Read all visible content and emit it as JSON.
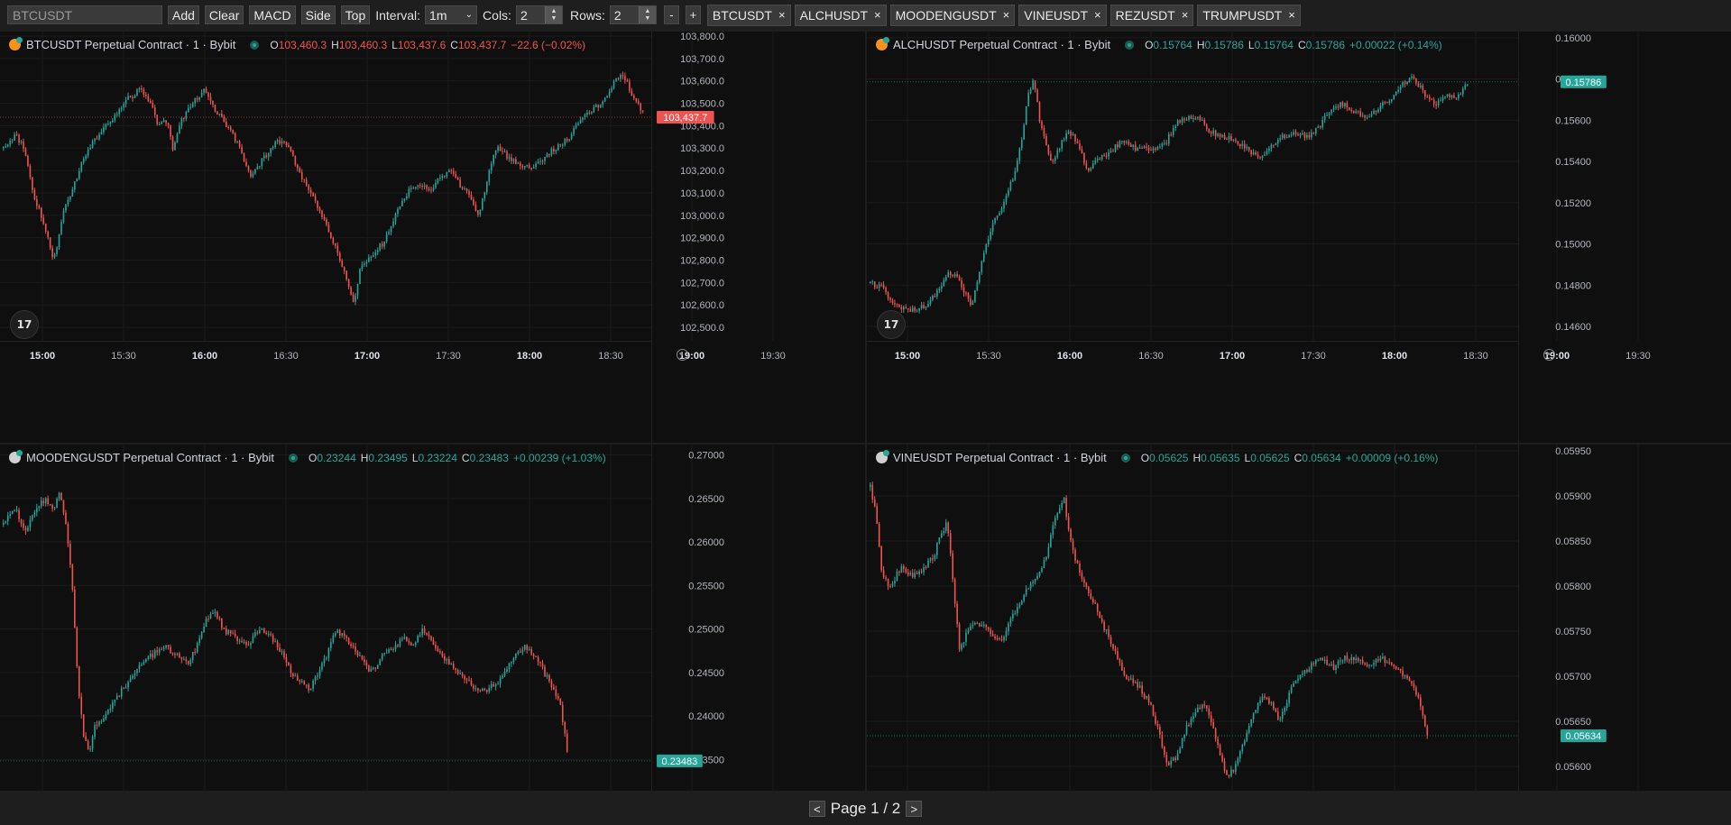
{
  "toolbar": {
    "search_value": "BTCUSDT",
    "add_label": "Add",
    "clear_label": "Clear",
    "macd_label": "MACD",
    "side_label": "Side",
    "top_label": "Top",
    "interval_label": "Interval:",
    "interval_value": "1m",
    "cols_label": "Cols:",
    "cols_value": "2",
    "rows_label": "Rows:",
    "rows_value": "2",
    "minus_label": "-",
    "plus_label": "+",
    "symbols": [
      "BTCUSDT",
      "ALCHUSDT",
      "MOODENGUSDT",
      "VINEUSDT",
      "REZUSDT",
      "TRUMPUSDT"
    ],
    "remove_glyph": "×"
  },
  "footer": {
    "prev_label": "<",
    "page_text": "Page 1 / 2",
    "next_label": ">"
  },
  "colors": {
    "up": "#26a69a",
    "down": "#ef5350",
    "background": "#0f0f0f",
    "grid": "#1c1c1c"
  },
  "chart_data": [
    {
      "type": "candlestick",
      "title": "BTCUSDT Perpetual Contract · 1 · Bybit",
      "exchange_icon": "bybit-orange",
      "ohlc": {
        "o": "103,460.3",
        "h": "103,460.3",
        "l": "103,437.6",
        "c": "103,437.7",
        "change": "−22.6 (−0.02%)",
        "direction": "down"
      },
      "last_price_label": "103,437.7",
      "last_price": 103437.7,
      "y_ticks": [
        "103,800.0",
        "103,700.0",
        "103,600.0",
        "103,500.0",
        "103,400.0",
        "103,300.0",
        "103,200.0",
        "103,100.0",
        "103,000.0",
        "102,900.0",
        "102,800.0",
        "102,700.0",
        "102,600.0",
        "102,500.0"
      ],
      "ylim": [
        102440,
        103820
      ],
      "x_ticks": [
        {
          "label": "15:00",
          "bold": true
        },
        {
          "label": "15:30",
          "bold": false
        },
        {
          "label": "16:00",
          "bold": true
        },
        {
          "label": "16:30",
          "bold": false
        },
        {
          "label": "17:00",
          "bold": true
        },
        {
          "label": "17:30",
          "bold": false
        },
        {
          "label": "18:00",
          "bold": true
        },
        {
          "label": "18:30",
          "bold": false
        },
        {
          "label": "19:00",
          "bold": true
        },
        {
          "label": "19:30",
          "bold": false
        }
      ],
      "bars": 287,
      "path": [
        [
          0,
          103300
        ],
        [
          8,
          103360
        ],
        [
          14,
          103300
        ],
        [
          20,
          103100
        ],
        [
          28,
          102950
        ],
        [
          34,
          102800
        ],
        [
          40,
          103000
        ],
        [
          48,
          103150
        ],
        [
          56,
          103280
        ],
        [
          66,
          103380
        ],
        [
          76,
          103450
        ],
        [
          84,
          103520
        ],
        [
          92,
          103560
        ],
        [
          100,
          103490
        ],
        [
          104,
          103400
        ],
        [
          110,
          103420
        ],
        [
          114,
          103300
        ],
        [
          118,
          103400
        ],
        [
          124,
          103470
        ],
        [
          130,
          103520
        ],
        [
          136,
          103560
        ],
        [
          142,
          103480
        ],
        [
          150,
          103400
        ],
        [
          158,
          103320
        ],
        [
          166,
          103180
        ],
        [
          176,
          103260
        ],
        [
          184,
          103340
        ],
        [
          192,
          103300
        ],
        [
          200,
          103180
        ],
        [
          208,
          103080
        ],
        [
          216,
          102980
        ],
        [
          224,
          102850
        ],
        [
          232,
          102700
        ],
        [
          236,
          102610
        ],
        [
          240,
          102760
        ],
        [
          248,
          102820
        ],
        [
          256,
          102880
        ],
        [
          264,
          103000
        ],
        [
          272,
          103100
        ],
        [
          280,
          103140
        ],
        [
          288,
          103120
        ],
        [
          296,
          103180
        ],
        [
          302,
          103210
        ],
        [
          308,
          103130
        ],
        [
          314,
          103080
        ],
        [
          320,
          103000
        ],
        [
          326,
          103170
        ],
        [
          332,
          103300
        ],
        [
          340,
          103260
        ],
        [
          348,
          103230
        ],
        [
          356,
          103210
        ],
        [
          364,
          103260
        ],
        [
          372,
          103300
        ],
        [
          380,
          103340
        ],
        [
          388,
          103420
        ],
        [
          396,
          103470
        ],
        [
          404,
          103500
        ],
        [
          410,
          103580
        ],
        [
          416,
          103640
        ],
        [
          422,
          103560
        ],
        [
          428,
          103480
        ],
        [
          432,
          103440
        ]
      ]
    },
    {
      "type": "candlestick",
      "title": "ALCHUSDT Perpetual Contract · 1 · Bybit",
      "exchange_icon": "bybit-orange",
      "ohlc": {
        "o": "0.15764",
        "h": "0.15786",
        "l": "0.15764",
        "c": "0.15786",
        "change": "+0.00022 (+0.14%)",
        "direction": "up"
      },
      "last_price_label": "0.15786",
      "last_price": 0.15786,
      "y_ticks": [
        "0.16000",
        "0.15800",
        "0.15600",
        "0.15400",
        "0.15200",
        "0.15000",
        "0.14800",
        "0.14600"
      ],
      "ylim": [
        0.1453,
        0.1603
      ],
      "x_ticks": [
        {
          "label": "15:00",
          "bold": true
        },
        {
          "label": "15:30",
          "bold": false
        },
        {
          "label": "16:00",
          "bold": true
        },
        {
          "label": "16:30",
          "bold": false
        },
        {
          "label": "17:00",
          "bold": true
        },
        {
          "label": "17:30",
          "bold": false
        },
        {
          "label": "18:00",
          "bold": true
        },
        {
          "label": "18:30",
          "bold": false
        },
        {
          "label": "19:00",
          "bold": true
        },
        {
          "label": "19:30",
          "bold": false
        }
      ],
      "bars": 290,
      "path": [
        [
          0,
          0.1481
        ],
        [
          8,
          0.1479
        ],
        [
          14,
          0.1472
        ],
        [
          22,
          0.1468
        ],
        [
          30,
          0.1468
        ],
        [
          38,
          0.147
        ],
        [
          46,
          0.1478
        ],
        [
          52,
          0.1486
        ],
        [
          58,
          0.1484
        ],
        [
          64,
          0.1476
        ],
        [
          68,
          0.147
        ],
        [
          72,
          0.1482
        ],
        [
          78,
          0.15
        ],
        [
          84,
          0.1512
        ],
        [
          90,
          0.152
        ],
        [
          96,
          0.1532
        ],
        [
          102,
          0.155
        ],
        [
          106,
          0.1572
        ],
        [
          110,
          0.158
        ],
        [
          114,
          0.156
        ],
        [
          118,
          0.1548
        ],
        [
          122,
          0.1538
        ],
        [
          128,
          0.1548
        ],
        [
          134,
          0.1555
        ],
        [
          140,
          0.1548
        ],
        [
          146,
          0.1536
        ],
        [
          152,
          0.154
        ],
        [
          160,
          0.1544
        ],
        [
          170,
          0.155
        ],
        [
          180,
          0.1546
        ],
        [
          190,
          0.1546
        ],
        [
          198,
          0.1548
        ],
        [
          206,
          0.1558
        ],
        [
          214,
          0.1562
        ],
        [
          222,
          0.156
        ],
        [
          230,
          0.1554
        ],
        [
          238,
          0.1552
        ],
        [
          246,
          0.155
        ],
        [
          254,
          0.1546
        ],
        [
          262,
          0.1542
        ],
        [
          270,
          0.1548
        ],
        [
          278,
          0.1552
        ],
        [
          286,
          0.1554
        ],
        [
          294,
          0.1552
        ],
        [
          302,
          0.1556
        ],
        [
          310,
          0.1566
        ],
        [
          318,
          0.1568
        ],
        [
          326,
          0.1564
        ],
        [
          334,
          0.1562
        ],
        [
          342,
          0.1566
        ],
        [
          350,
          0.157
        ],
        [
          358,
          0.1578
        ],
        [
          364,
          0.1581
        ],
        [
          370,
          0.1576
        ],
        [
          376,
          0.157
        ],
        [
          382,
          0.1568
        ],
        [
          388,
          0.1572
        ],
        [
          394,
          0.157
        ],
        [
          400,
          0.1576
        ],
        [
          404,
          0.1579
        ]
      ]
    },
    {
      "type": "candlestick",
      "title": "MOODENGUSDT Perpetual Contract · 1 · Bybit",
      "exchange_icon": "bybit-white",
      "ohlc": {
        "o": "0.23244",
        "h": "0.23495",
        "l": "0.23224",
        "c": "0.23483",
        "change": "+0.00239 (+1.03%)",
        "direction": "up"
      },
      "last_price_label": "0.23483",
      "last_price": 0.23483,
      "y_ticks": [
        "0.27000",
        "0.26500",
        "0.26000",
        "0.25500",
        "0.25000",
        "0.24500",
        "0.24000",
        "0.23500"
      ],
      "ylim": [
        0.2314,
        0.2712
      ],
      "x_ticks": [],
      "bars": 287,
      "path": [
        [
          0,
          0.262
        ],
        [
          8,
          0.264
        ],
        [
          14,
          0.261
        ],
        [
          20,
          0.263
        ],
        [
          28,
          0.265
        ],
        [
          34,
          0.264
        ],
        [
          38,
          0.266
        ],
        [
          42,
          0.262
        ],
        [
          46,
          0.256
        ],
        [
          50,
          0.244
        ],
        [
          54,
          0.238
        ],
        [
          58,
          0.236
        ],
        [
          62,
          0.239
        ],
        [
          68,
          0.24
        ],
        [
          76,
          0.242
        ],
        [
          84,
          0.244
        ],
        [
          92,
          0.246
        ],
        [
          100,
          0.247
        ],
        [
          108,
          0.248
        ],
        [
          116,
          0.247
        ],
        [
          124,
          0.246
        ],
        [
          130,
          0.248
        ],
        [
          136,
          0.251
        ],
        [
          142,
          0.252
        ],
        [
          148,
          0.25
        ],
        [
          156,
          0.249
        ],
        [
          164,
          0.248
        ],
        [
          172,
          0.25
        ],
        [
          180,
          0.249
        ],
        [
          188,
          0.247
        ],
        [
          194,
          0.245
        ],
        [
          200,
          0.244
        ],
        [
          206,
          0.243
        ],
        [
          212,
          0.245
        ],
        [
          218,
          0.247
        ],
        [
          224,
          0.25
        ],
        [
          230,
          0.249
        ],
        [
          236,
          0.248
        ],
        [
          242,
          0.246
        ],
        [
          248,
          0.245
        ],
        [
          256,
          0.247
        ],
        [
          264,
          0.248
        ],
        [
          270,
          0.249
        ],
        [
          276,
          0.248
        ],
        [
          282,
          0.25
        ],
        [
          288,
          0.249
        ],
        [
          294,
          0.247
        ],
        [
          300,
          0.246
        ],
        [
          306,
          0.245
        ],
        [
          312,
          0.244
        ],
        [
          318,
          0.243
        ],
        [
          326,
          0.243
        ],
        [
          334,
          0.244
        ],
        [
          340,
          0.246
        ],
        [
          346,
          0.247
        ],
        [
          352,
          0.248
        ],
        [
          358,
          0.247
        ],
        [
          364,
          0.245
        ],
        [
          370,
          0.243
        ],
        [
          374,
          0.242
        ],
        [
          378,
          0.238
        ],
        [
          381,
          0.2332
        ],
        [
          382,
          0.2348
        ]
      ]
    },
    {
      "type": "candlestick",
      "title": "VINEUSDT Perpetual Contract · 1 · Bybit",
      "exchange_icon": "bybit-white",
      "ohlc": {
        "o": "0.05625",
        "h": "0.05635",
        "l": "0.05625",
        "c": "0.05634",
        "change": "+0.00009 (+0.16%)",
        "direction": "up"
      },
      "last_price_label": "0.05634",
      "last_price": 0.05634,
      "y_ticks": [
        "0.05950",
        "0.05900",
        "0.05850",
        "0.05800",
        "0.05750",
        "0.05700",
        "0.05650",
        "0.05600"
      ],
      "ylim": [
        0.05573,
        0.05957
      ],
      "x_ticks": [],
      "bars": 288,
      "path": [
        [
          0,
          0.0591
        ],
        [
          4,
          0.0588
        ],
        [
          8,
          0.0581
        ],
        [
          14,
          0.058
        ],
        [
          20,
          0.0582
        ],
        [
          28,
          0.0581
        ],
        [
          36,
          0.0582
        ],
        [
          42,
          0.0583
        ],
        [
          48,
          0.0586
        ],
        [
          52,
          0.0587
        ],
        [
          56,
          0.058
        ],
        [
          60,
          0.0573
        ],
        [
          66,
          0.0575
        ],
        [
          72,
          0.0576
        ],
        [
          80,
          0.0575
        ],
        [
          88,
          0.0574
        ],
        [
          94,
          0.0576
        ],
        [
          100,
          0.0578
        ],
        [
          106,
          0.058
        ],
        [
          112,
          0.0581
        ],
        [
          118,
          0.0583
        ],
        [
          122,
          0.0586
        ],
        [
          126,
          0.0588
        ],
        [
          130,
          0.059
        ],
        [
          134,
          0.0586
        ],
        [
          138,
          0.0583
        ],
        [
          142,
          0.0581
        ],
        [
          148,
          0.0579
        ],
        [
          156,
          0.0576
        ],
        [
          164,
          0.0573
        ],
        [
          172,
          0.057
        ],
        [
          180,
          0.0569
        ],
        [
          188,
          0.0567
        ],
        [
          194,
          0.0564
        ],
        [
          200,
          0.056
        ],
        [
          206,
          0.0561
        ],
        [
          212,
          0.0564
        ],
        [
          218,
          0.0566
        ],
        [
          224,
          0.0567
        ],
        [
          230,
          0.0565
        ],
        [
          236,
          0.0561
        ],
        [
          240,
          0.0559
        ],
        [
          246,
          0.056
        ],
        [
          252,
          0.0563
        ],
        [
          258,
          0.0566
        ],
        [
          264,
          0.0568
        ],
        [
          270,
          0.0567
        ],
        [
          276,
          0.0565
        ],
        [
          282,
          0.0568
        ],
        [
          288,
          0.057
        ],
        [
          296,
          0.0571
        ],
        [
          304,
          0.0572
        ],
        [
          312,
          0.0571
        ],
        [
          320,
          0.0572
        ],
        [
          328,
          0.0572
        ],
        [
          336,
          0.0571
        ],
        [
          344,
          0.0572
        ],
        [
          352,
          0.0571
        ],
        [
          360,
          0.057
        ],
        [
          366,
          0.0569
        ],
        [
          370,
          0.0567
        ],
        [
          374,
          0.0564
        ],
        [
          377,
          0.0563
        ]
      ]
    }
  ]
}
